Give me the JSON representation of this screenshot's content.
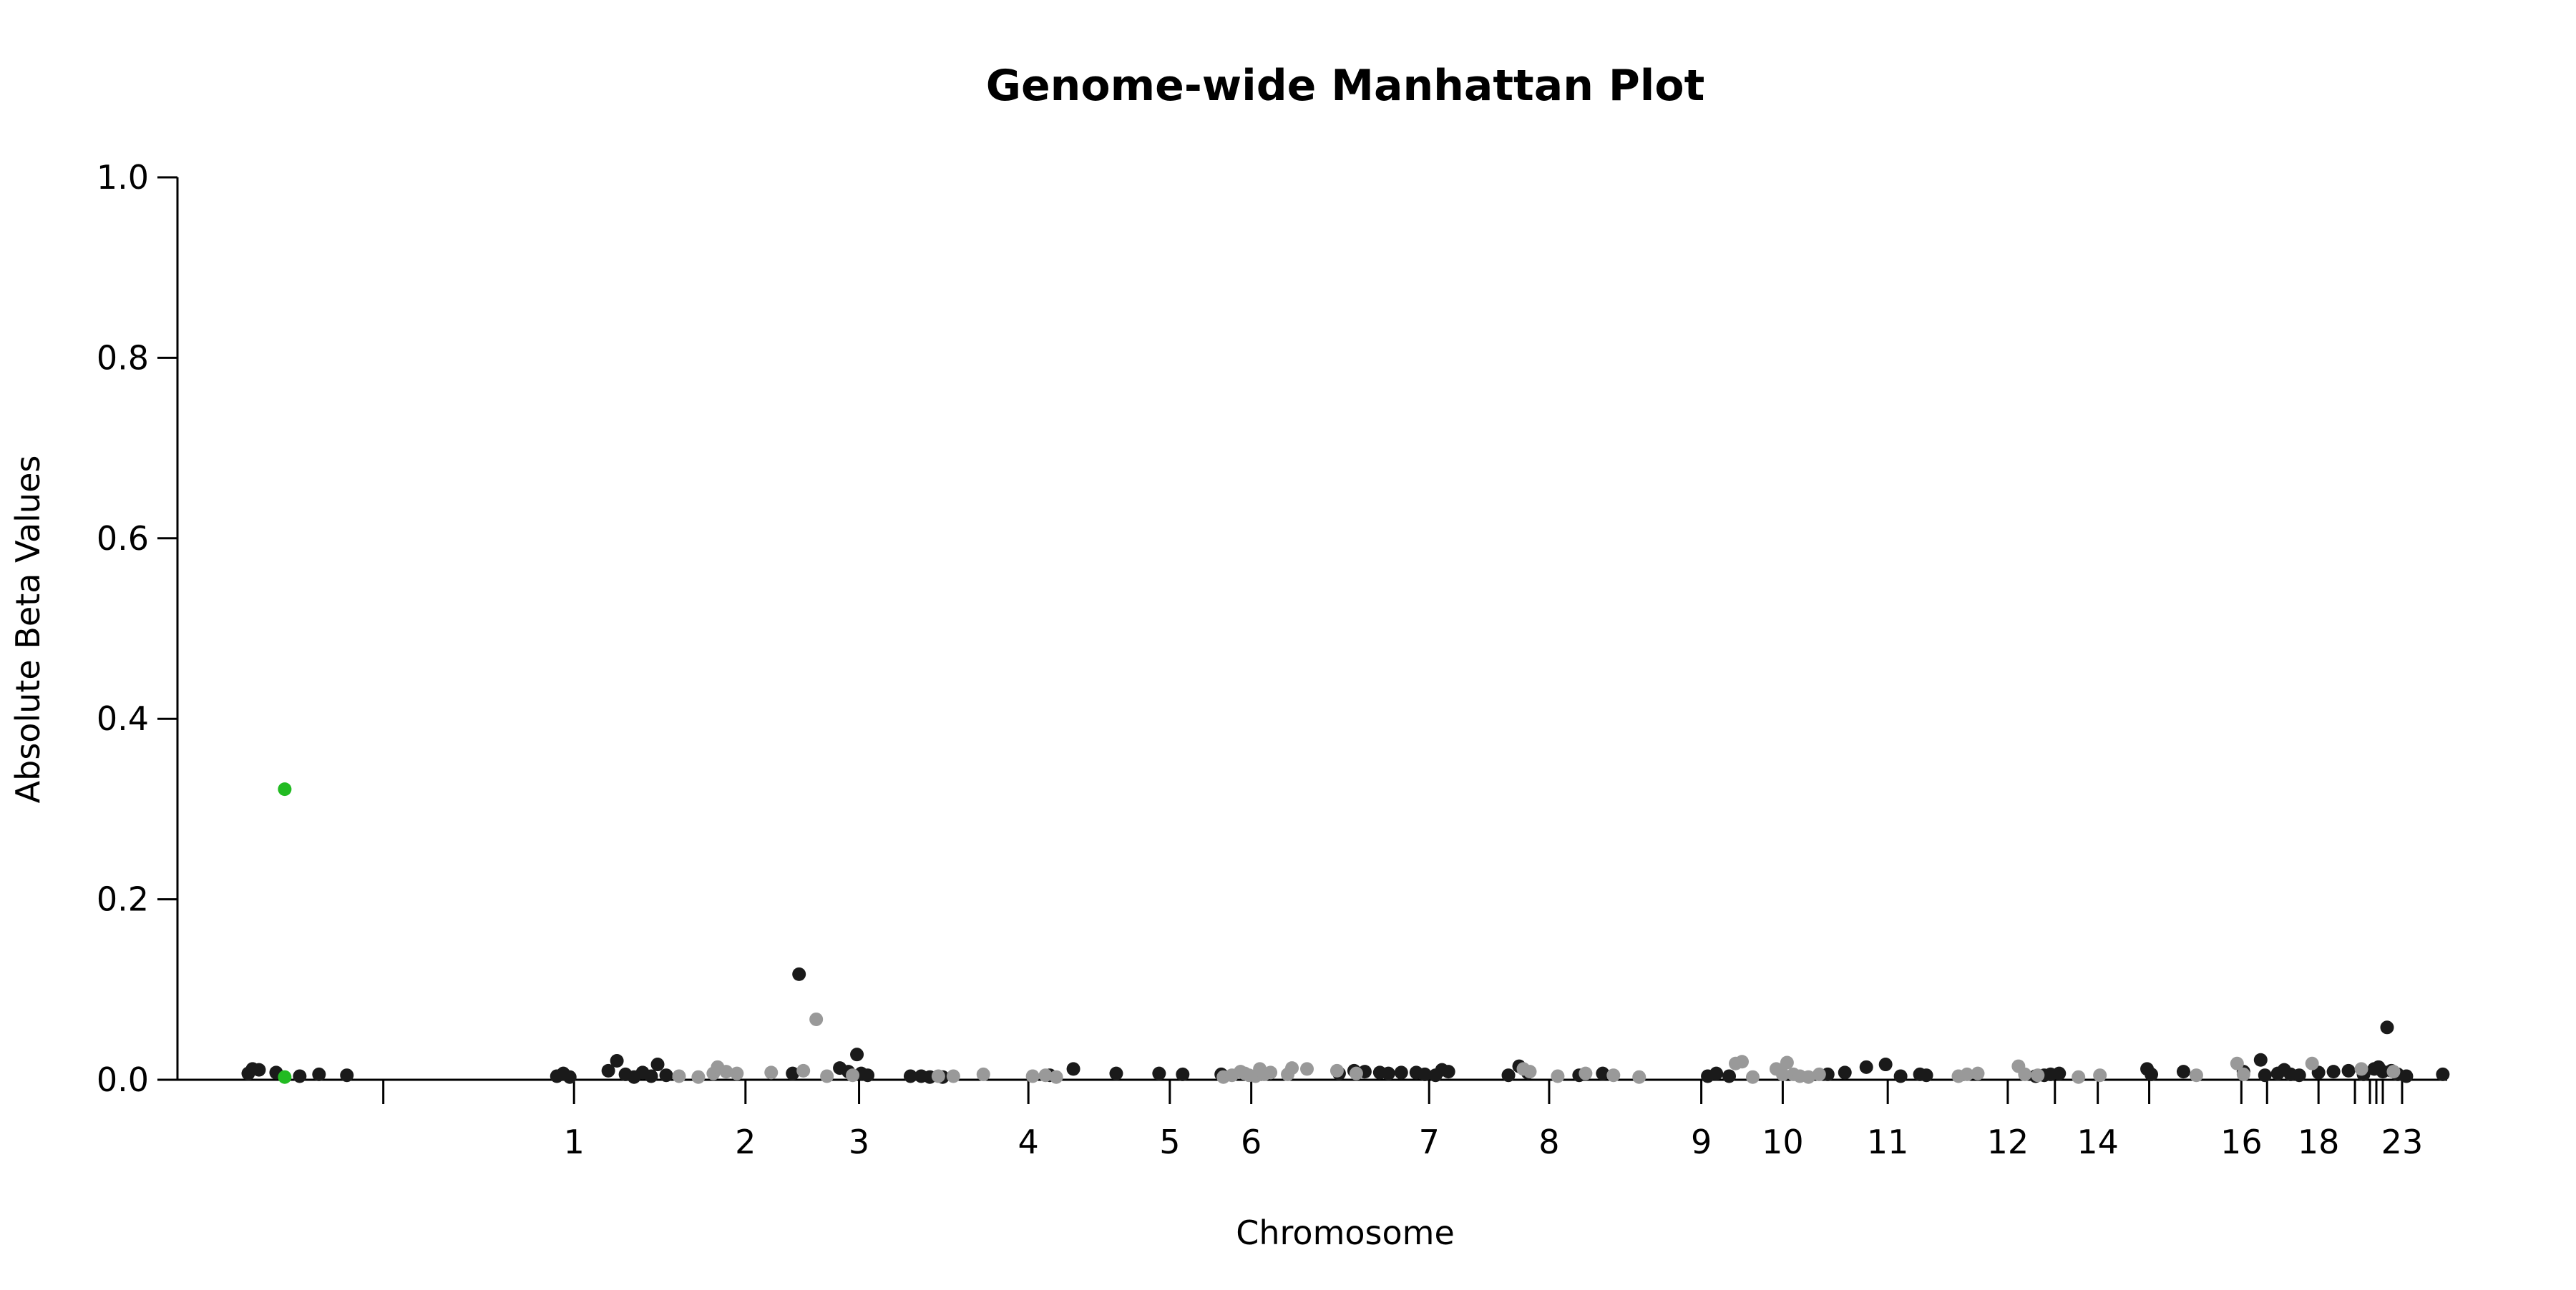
{
  "chart_data": {
    "type": "scatter",
    "title": "Genome-wide Manhattan Plot",
    "xlabel": "Chromosome",
    "ylabel": "Absolute Beta Values",
    "ylim": [
      0,
      1.0
    ],
    "yticks": [
      "0.0",
      "0.2",
      "0.4",
      "0.6",
      "0.8",
      "1.0"
    ],
    "xlim": [
      0,
      1.0
    ],
    "grid": false,
    "legend": "none",
    "colors": {
      "odd_chromosome": "#1a1a1a",
      "even_chromosome": "#999999",
      "highlight": "#22bb22"
    },
    "chromosome_ticks": [
      {
        "x": 0.067,
        "label": ""
      },
      {
        "x": 0.156,
        "label": "1"
      },
      {
        "x": 0.236,
        "label": "2"
      },
      {
        "x": 0.289,
        "label": "3"
      },
      {
        "x": 0.368,
        "label": "4"
      },
      {
        "x": 0.434,
        "label": "5"
      },
      {
        "x": 0.472,
        "label": "6"
      },
      {
        "x": 0.555,
        "label": "7"
      },
      {
        "x": 0.611,
        "label": "8"
      },
      {
        "x": 0.682,
        "label": "9"
      },
      {
        "x": 0.72,
        "label": "10"
      },
      {
        "x": 0.769,
        "label": "11"
      },
      {
        "x": 0.825,
        "label": "12"
      },
      {
        "x": 0.847,
        "label": ""
      },
      {
        "x": 0.867,
        "label": "14"
      },
      {
        "x": 0.891,
        "label": ""
      },
      {
        "x": 0.934,
        "label": "16"
      },
      {
        "x": 0.946,
        "label": ""
      },
      {
        "x": 0.97,
        "label": "18"
      },
      {
        "x": 0.987,
        "label": ""
      },
      {
        "x": 0.994,
        "label": ""
      },
      {
        "x": 0.997,
        "label": ""
      },
      {
        "x": 1.0,
        "label": ""
      },
      {
        "x": 1.009,
        "label": "23"
      }
    ],
    "series": [
      {
        "color_key": "odd_chromosome",
        "points": [
          [
            0.004,
            0.007
          ],
          [
            0.006,
            0.012
          ],
          [
            0.009,
            0.011
          ],
          [
            0.017,
            0.008
          ],
          [
            0.028,
            0.004
          ],
          [
            0.037,
            0.006
          ],
          [
            0.05,
            0.005
          ],
          [
            0.148,
            0.004
          ],
          [
            0.151,
            0.007
          ],
          [
            0.154,
            0.003
          ],
          [
            0.172,
            0.01
          ],
          [
            0.176,
            0.021
          ],
          [
            0.18,
            0.006
          ],
          [
            0.184,
            0.003
          ],
          [
            0.188,
            0.008
          ],
          [
            0.192,
            0.004
          ],
          [
            0.195,
            0.017
          ],
          [
            0.199,
            0.005
          ],
          [
            0.258,
            0.007
          ],
          [
            0.261,
            0.117
          ],
          [
            0.28,
            0.013
          ],
          [
            0.284,
            0.009
          ],
          [
            0.288,
            0.028
          ],
          [
            0.29,
            0.007
          ],
          [
            0.293,
            0.005
          ],
          [
            0.313,
            0.004
          ],
          [
            0.318,
            0.004
          ],
          [
            0.322,
            0.003
          ],
          [
            0.328,
            0.003
          ],
          [
            0.378,
            0.005
          ],
          [
            0.389,
            0.012
          ],
          [
            0.409,
            0.007
          ],
          [
            0.429,
            0.007
          ],
          [
            0.44,
            0.006
          ],
          [
            0.458,
            0.006
          ],
          [
            0.513,
            0.007
          ],
          [
            0.52,
            0.01
          ],
          [
            0.525,
            0.009
          ],
          [
            0.532,
            0.008
          ],
          [
            0.536,
            0.007
          ],
          [
            0.542,
            0.008
          ],
          [
            0.549,
            0.008
          ],
          [
            0.553,
            0.006
          ],
          [
            0.558,
            0.005
          ],
          [
            0.561,
            0.011
          ],
          [
            0.564,
            0.009
          ],
          [
            0.592,
            0.005
          ],
          [
            0.597,
            0.015
          ],
          [
            0.601,
            0.008
          ],
          [
            0.625,
            0.005
          ],
          [
            0.636,
            0.007
          ],
          [
            0.685,
            0.004
          ],
          [
            0.689,
            0.007
          ],
          [
            0.695,
            0.004
          ],
          [
            0.741,
            0.006
          ],
          [
            0.749,
            0.008
          ],
          [
            0.759,
            0.014
          ],
          [
            0.768,
            0.017
          ],
          [
            0.775,
            0.004
          ],
          [
            0.784,
            0.006
          ],
          [
            0.787,
            0.005
          ],
          [
            0.838,
            0.004
          ],
          [
            0.842,
            0.005
          ],
          [
            0.845,
            0.006
          ],
          [
            0.849,
            0.007
          ],
          [
            0.89,
            0.012
          ],
          [
            0.892,
            0.006
          ],
          [
            0.907,
            0.009
          ],
          [
            0.935,
            0.009
          ],
          [
            0.943,
            0.022
          ],
          [
            0.945,
            0.005
          ],
          [
            0.951,
            0.007
          ],
          [
            0.954,
            0.011
          ],
          [
            0.957,
            0.006
          ],
          [
            0.961,
            0.005
          ],
          [
            0.97,
            0.008
          ],
          [
            0.977,
            0.009
          ],
          [
            0.984,
            0.01
          ],
          [
            0.991,
            0.006
          ],
          [
            0.996,
            0.012
          ],
          [
            0.998,
            0.014
          ],
          [
            1.0,
            0.009
          ],
          [
            1.002,
            0.058
          ],
          [
            1.004,
            0.01
          ],
          [
            1.007,
            0.006
          ],
          [
            1.011,
            0.004
          ],
          [
            1.028,
            0.006
          ]
        ]
      },
      {
        "color_key": "even_chromosome",
        "points": [
          [
            0.205,
            0.004
          ],
          [
            0.214,
            0.003
          ],
          [
            0.221,
            0.007
          ],
          [
            0.223,
            0.014
          ],
          [
            0.227,
            0.009
          ],
          [
            0.232,
            0.007
          ],
          [
            0.248,
            0.008
          ],
          [
            0.263,
            0.01
          ],
          [
            0.274,
            0.004
          ],
          [
            0.286,
            0.005
          ],
          [
            0.269,
            0.067
          ],
          [
            0.326,
            0.004
          ],
          [
            0.333,
            0.004
          ],
          [
            0.347,
            0.006
          ],
          [
            0.37,
            0.004
          ],
          [
            0.376,
            0.005
          ],
          [
            0.381,
            0.003
          ],
          [
            0.459,
            0.003
          ],
          [
            0.463,
            0.005
          ],
          [
            0.467,
            0.009
          ],
          [
            0.469,
            0.007
          ],
          [
            0.471,
            0.005
          ],
          [
            0.474,
            0.004
          ],
          [
            0.476,
            0.012
          ],
          [
            0.478,
            0.006
          ],
          [
            0.481,
            0.008
          ],
          [
            0.489,
            0.006
          ],
          [
            0.491,
            0.013
          ],
          [
            0.498,
            0.012
          ],
          [
            0.512,
            0.01
          ],
          [
            0.521,
            0.007
          ],
          [
            0.599,
            0.012
          ],
          [
            0.602,
            0.009
          ],
          [
            0.615,
            0.004
          ],
          [
            0.628,
            0.007
          ],
          [
            0.641,
            0.005
          ],
          [
            0.653,
            0.003
          ],
          [
            0.698,
            0.018
          ],
          [
            0.701,
            0.02
          ],
          [
            0.706,
            0.003
          ],
          [
            0.717,
            0.012
          ],
          [
            0.72,
            0.006
          ],
          [
            0.722,
            0.019
          ],
          [
            0.725,
            0.006
          ],
          [
            0.728,
            0.004
          ],
          [
            0.732,
            0.003
          ],
          [
            0.737,
            0.006
          ],
          [
            0.802,
            0.004
          ],
          [
            0.806,
            0.006
          ],
          [
            0.811,
            0.007
          ],
          [
            0.83,
            0.015
          ],
          [
            0.833,
            0.006
          ],
          [
            0.839,
            0.005
          ],
          [
            0.858,
            0.003
          ],
          [
            0.868,
            0.005
          ],
          [
            0.913,
            0.005
          ],
          [
            0.932,
            0.018
          ],
          [
            0.935,
            0.006
          ],
          [
            0.967,
            0.018
          ],
          [
            0.99,
            0.012
          ],
          [
            1.005,
            0.009
          ]
        ]
      },
      {
        "color_key": "highlight",
        "points": [
          [
            0.021,
            0.322
          ],
          [
            0.021,
            0.003
          ]
        ]
      }
    ]
  }
}
